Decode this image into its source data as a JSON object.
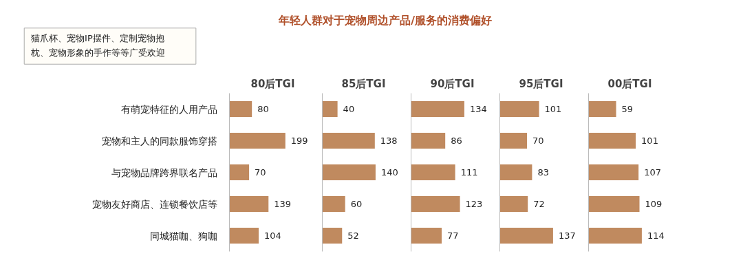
{
  "chart_data": [
    {
      "type": "bar",
      "orientation": "horizontal",
      "title": "80后TGI",
      "categories": [
        "有萌宠特征的人用产品",
        "宠物和主人的同款服饰穿搭",
        "与宠物品牌跨界联名产品",
        "宠物友好商店、连锁餐饮店等",
        "同城猫咖、狗咖"
      ],
      "values": [
        80,
        199,
        70,
        139,
        104
      ],
      "color": "#c08a5f",
      "data_labels": true,
      "tick_labels": "y",
      "annotations": [
        "年轻人群对于宠物周边产品/服务的消费偏好",
        "猫爪杯、宠物IP摆件、定制宠物抱枕、宠物形象的手作等等广受欢迎"
      ]
    },
    {
      "type": "bar",
      "orientation": "horizontal",
      "title": "85后TGI",
      "categories": [
        null,
        null,
        null,
        null,
        null
      ],
      "values": [
        40,
        138,
        140,
        60,
        52
      ],
      "color": "#c08a5f",
      "data_labels": true,
      "tick_labels": false
    },
    {
      "type": "bar",
      "orientation": "horizontal",
      "title": "90后TGI",
      "categories": [
        null,
        null,
        null,
        null,
        null
      ],
      "values": [
        134,
        86,
        111,
        123,
        77
      ],
      "color": "#c08a5f",
      "data_labels": true,
      "tick_labels": false
    },
    {
      "type": "bar",
      "orientation": "horizontal",
      "title": "95后TGI",
      "categories": [
        null,
        null,
        null,
        null,
        null
      ],
      "values": [
        101,
        70,
        83,
        72,
        137
      ],
      "color": "#c08a5f",
      "data_labels": true,
      "tick_labels": false
    },
    {
      "type": "bar",
      "orientation": "horizontal",
      "title": "00后TGI",
      "categories": [
        null,
        null,
        null,
        null,
        null
      ],
      "values": [
        59,
        101,
        107,
        109,
        114
      ],
      "color": "#c08a5f",
      "data_labels": true,
      "tick_labels": false
    }
  ]
}
